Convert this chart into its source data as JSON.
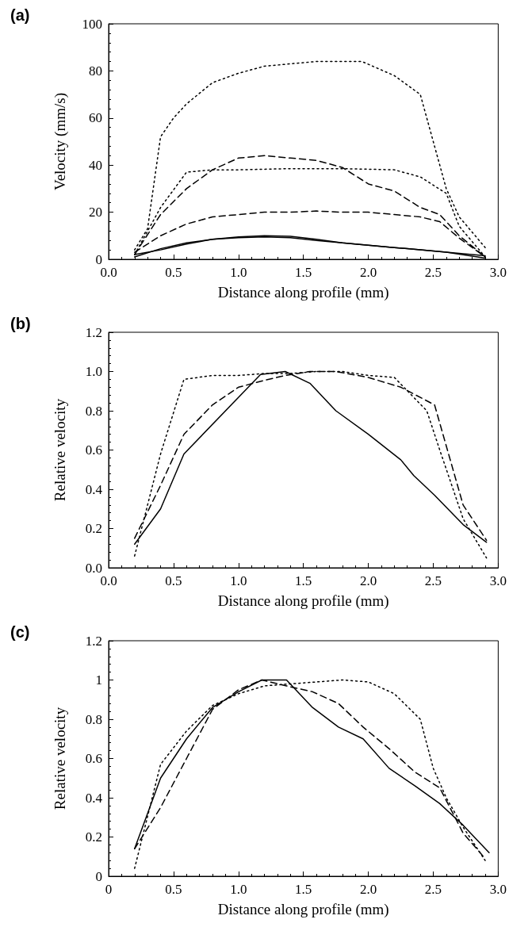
{
  "chart_data": [
    {
      "type": "line",
      "title": "(a)",
      "xlabel": "Distance along profile (mm)",
      "ylabel": "Velocity (mm/s)",
      "xlim": [
        0,
        3
      ],
      "ylim": [
        0,
        100
      ],
      "xticks": [
        {
          "value": 0,
          "label": "0.0"
        },
        0.5,
        {
          "value": 1,
          "label": "1.0"
        },
        1.5,
        {
          "value": 2,
          "label": "2.0"
        },
        2.5,
        {
          "value": 3,
          "label": "3.0"
        }
      ],
      "yticks": [
        0,
        20,
        40,
        60,
        80,
        100
      ],
      "marker": "none",
      "series": [
        {
          "color": "#000000",
          "line_style": "dotted",
          "x": [
            0.2,
            0.3,
            0.4,
            0.5,
            0.6,
            0.8,
            1.0,
            1.2,
            1.4,
            1.6,
            1.8,
            1.95,
            2.2,
            2.4,
            2.5,
            2.6,
            2.7,
            2.9
          ],
          "values": [
            4,
            13,
            52,
            60,
            66,
            75,
            79,
            82,
            83,
            84,
            84,
            84,
            78,
            70,
            50,
            30,
            18,
            5
          ]
        },
        {
          "color": "#000000",
          "line_style": "dashed",
          "x": [
            0.2,
            0.4,
            0.6,
            0.8,
            1.0,
            1.2,
            1.4,
            1.6,
            1.8,
            2.0,
            2.2,
            2.4,
            2.55,
            2.7,
            2.9
          ],
          "values": [
            2,
            19,
            30,
            38,
            43,
            44,
            43,
            42,
            39,
            32,
            29,
            22,
            19,
            10,
            1
          ]
        },
        {
          "color": "#000000",
          "line_style": "dotted",
          "x": [
            0.2,
            0.4,
            0.6,
            0.8,
            1.0,
            1.4,
            1.8,
            2.2,
            2.4,
            2.6,
            2.7,
            2.9
          ],
          "values": [
            2,
            22,
            37,
            38,
            38,
            38.5,
            38.5,
            38,
            35,
            28,
            14,
            1
          ]
        },
        {
          "color": "#000000",
          "line_style": "dashed",
          "x": [
            0.2,
            0.4,
            0.6,
            0.8,
            1.0,
            1.2,
            1.4,
            1.6,
            1.8,
            2.0,
            2.2,
            2.4,
            2.55,
            2.7,
            2.9
          ],
          "values": [
            3,
            10,
            15,
            18,
            19,
            20,
            20,
            20.5,
            20,
            20,
            19,
            18,
            16,
            9,
            1
          ]
        },
        {
          "color": "#000000",
          "line_style": "solid",
          "x": [
            0.2,
            0.4,
            0.6,
            0.8,
            1.0,
            1.2,
            1.4,
            1.6,
            1.8,
            2.0,
            2.2,
            2.4,
            2.6,
            2.9
          ],
          "values": [
            1,
            4.5,
            7,
            8.5,
            9.2,
            9.5,
            9.2,
            8,
            7,
            6,
            5,
            4,
            3,
            0.5
          ]
        },
        {
          "color": "#000000",
          "line_style": "solid",
          "x": [
            0.2,
            0.4,
            0.6,
            0.8,
            1.0,
            1.2,
            1.4,
            1.6,
            1.8,
            2.0,
            2.2,
            2.4,
            2.6,
            2.9
          ],
          "values": [
            2,
            4,
            6.5,
            8.5,
            9.5,
            10,
            9.8,
            8.5,
            7,
            6,
            5,
            4,
            3,
            1.5
          ]
        }
      ]
    },
    {
      "type": "line",
      "title": "(b)",
      "xlabel": "Distance along profile (mm)",
      "ylabel": "Relative velocity",
      "xlim": [
        0,
        3
      ],
      "ylim": [
        0,
        1.2
      ],
      "xticks": [
        {
          "value": 0,
          "label": "0.0"
        },
        0.5,
        {
          "value": 1,
          "label": "1.0"
        },
        1.5,
        {
          "value": 2,
          "label": "2.0"
        },
        2.5,
        {
          "value": 3,
          "label": "3.0"
        }
      ],
      "yticks": [
        {
          "value": 0,
          "label": "0.0"
        },
        0.2,
        0.4,
        0.6,
        0.8,
        {
          "value": 1,
          "label": "1.0"
        },
        1.2
      ],
      "marker": "none",
      "series": [
        {
          "color": "#000000",
          "line_style": "solid",
          "x": [
            0.2,
            0.4,
            0.58,
            1.17,
            1.36,
            1.55,
            1.75,
            2.0,
            2.25,
            2.35,
            2.51,
            2.73,
            2.91
          ],
          "values": [
            0.12,
            0.3,
            0.58,
            0.985,
            1.0,
            0.94,
            0.8,
            0.68,
            0.55,
            0.47,
            0.37,
            0.22,
            0.13
          ]
        },
        {
          "color": "#000000",
          "line_style": "dashed",
          "x": [
            0.2,
            0.4,
            0.58,
            0.8,
            1.0,
            1.2,
            1.36,
            1.55,
            1.75,
            2.0,
            2.25,
            2.51,
            2.73,
            2.91
          ],
          "values": [
            0.15,
            0.42,
            0.68,
            0.83,
            0.92,
            0.955,
            0.98,
            1.0,
            1.0,
            0.97,
            0.92,
            0.83,
            0.32,
            0.14
          ]
        },
        {
          "color": "#000000",
          "line_style": "dotted",
          "x": [
            0.2,
            0.4,
            0.58,
            0.8,
            1.0,
            1.2,
            1.4,
            1.6,
            1.8,
            2.0,
            2.2,
            2.45,
            2.55,
            2.73,
            2.91
          ],
          "values": [
            0.06,
            0.58,
            0.96,
            0.98,
            0.98,
            0.99,
            0.99,
            1.0,
            1.0,
            0.98,
            0.97,
            0.8,
            0.6,
            0.25,
            0.05
          ]
        }
      ]
    },
    {
      "type": "line",
      "title": "(c)",
      "xlabel": "Distance along profile (mm)",
      "ylabel": "Relative velocity",
      "xlim": [
        0,
        3
      ],
      "ylim": [
        0,
        1.2
      ],
      "xticks": [
        0,
        0.5,
        {
          "value": 1,
          "label": "1.0"
        },
        1.5,
        {
          "value": 2,
          "label": "2.0"
        },
        2.5,
        {
          "value": 3,
          "label": "3.0"
        }
      ],
      "yticks": [
        0,
        0.2,
        0.4,
        0.6,
        0.8,
        1,
        1.2
      ],
      "marker": "none",
      "series": [
        {
          "color": "#000000",
          "line_style": "solid",
          "x": [
            0.2,
            0.4,
            0.6,
            0.8,
            1.0,
            1.18,
            1.37,
            1.57,
            1.77,
            1.96,
            2.16,
            2.36,
            2.55,
            2.73,
            2.93
          ],
          "values": [
            0.14,
            0.5,
            0.7,
            0.86,
            0.94,
            1.0,
            1.0,
            0.86,
            0.76,
            0.7,
            0.55,
            0.46,
            0.37,
            0.26,
            0.12
          ]
        },
        {
          "color": "#000000",
          "line_style": "dashed",
          "x": [
            0.2,
            0.4,
            0.6,
            0.8,
            1.0,
            1.18,
            1.37,
            1.57,
            1.77,
            1.96,
            2.16,
            2.36,
            2.55,
            2.73,
            2.9
          ],
          "values": [
            0.14,
            0.35,
            0.6,
            0.85,
            0.95,
            1.0,
            0.97,
            0.94,
            0.88,
            0.76,
            0.65,
            0.53,
            0.45,
            0.22,
            0.09
          ]
        },
        {
          "color": "#000000",
          "line_style": "dotted",
          "x": [
            0.2,
            0.4,
            0.6,
            0.8,
            1.0,
            1.2,
            1.4,
            1.6,
            1.8,
            2.0,
            2.2,
            2.4,
            2.5,
            2.6,
            2.73,
            2.9
          ],
          "values": [
            0.04,
            0.57,
            0.74,
            0.87,
            0.93,
            0.97,
            0.98,
            0.99,
            1.0,
            0.99,
            0.93,
            0.8,
            0.55,
            0.4,
            0.25,
            0.08
          ]
        }
      ]
    }
  ]
}
